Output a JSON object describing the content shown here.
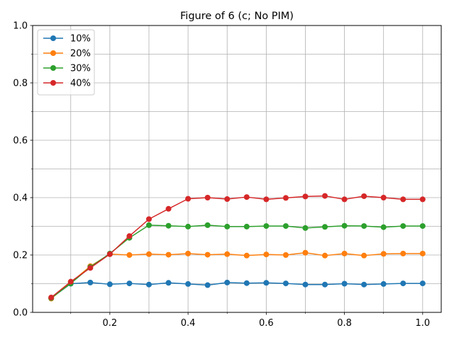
{
  "chart_data": {
    "type": "line",
    "title": "Figure of 6 (c; No PIM)",
    "xlabel": "",
    "ylabel": "",
    "xlim": [
      0.0025,
      1.0475
    ],
    "ylim": [
      0,
      1.0
    ],
    "x_major_ticks": [
      0.2,
      0.4,
      0.6,
      0.8,
      1.0
    ],
    "x_major_tick_labels": [
      "0.2",
      "0.4",
      "0.6",
      "0.8",
      "1.0"
    ],
    "x_minor_ticks": [
      0.1,
      0.3,
      0.5,
      0.7,
      0.9
    ],
    "y_major_ticks": [
      0.0,
      0.2,
      0.4,
      0.6,
      0.8,
      1.0
    ],
    "y_major_tick_labels": [
      "0.0",
      "0.2",
      "0.4",
      "0.6",
      "0.8",
      "1.0"
    ],
    "y_minor_ticks": [
      0.1,
      0.3,
      0.5,
      0.7,
      0.9
    ],
    "grid": true,
    "legend_position": "top-left",
    "x": [
      0.05,
      0.1,
      0.15,
      0.2,
      0.25,
      0.3,
      0.35,
      0.4,
      0.45,
      0.5,
      0.55,
      0.6,
      0.65,
      0.7,
      0.75,
      0.8,
      0.85,
      0.9,
      0.95,
      1.0
    ],
    "series": [
      {
        "name": "10%",
        "color": "#1f77b4",
        "values": [
          0.05,
          0.1,
          0.104,
          0.098,
          0.101,
          0.097,
          0.103,
          0.099,
          0.095,
          0.104,
          0.102,
          0.103,
          0.101,
          0.097,
          0.097,
          0.1,
          0.097,
          0.099,
          0.101,
          0.101
        ]
      },
      {
        "name": "20%",
        "color": "#ff7f0e",
        "values": [
          0.048,
          0.104,
          0.161,
          0.203,
          0.2,
          0.203,
          0.201,
          0.205,
          0.201,
          0.203,
          0.198,
          0.202,
          0.2,
          0.208,
          0.198,
          0.205,
          0.198,
          0.204,
          0.205,
          0.205
        ]
      },
      {
        "name": "30%",
        "color": "#2ca02c",
        "values": [
          0.05,
          0.101,
          0.158,
          0.205,
          0.26,
          0.304,
          0.302,
          0.299,
          0.304,
          0.299,
          0.299,
          0.301,
          0.301,
          0.294,
          0.298,
          0.302,
          0.301,
          0.297,
          0.301,
          0.301
        ]
      },
      {
        "name": "40%",
        "color": "#d62728",
        "values": [
          0.052,
          0.107,
          0.155,
          0.203,
          0.266,
          0.325,
          0.361,
          0.396,
          0.4,
          0.395,
          0.402,
          0.394,
          0.399,
          0.404,
          0.406,
          0.394,
          0.405,
          0.4,
          0.394,
          0.394
        ]
      }
    ]
  }
}
